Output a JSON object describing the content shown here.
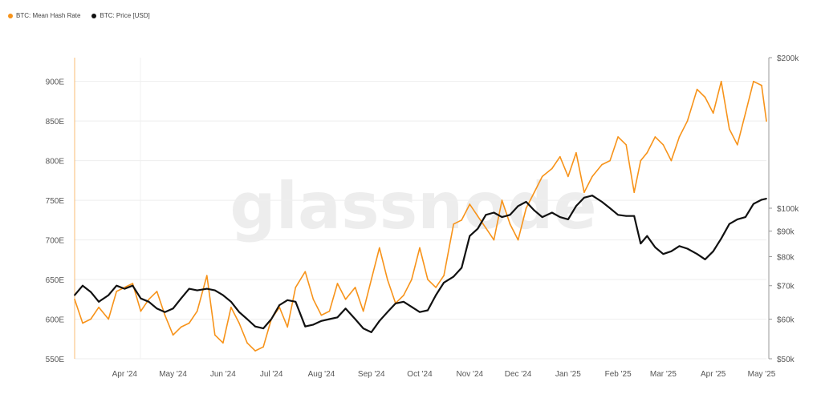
{
  "legend": [
    {
      "label": "BTC: Mean Hash Rate",
      "color": "#f7931a"
    },
    {
      "label": "BTC: Price [USD]",
      "color": "#111111"
    }
  ],
  "watermark": "glassnode",
  "chart_data": {
    "type": "line",
    "x_labels": [
      "Apr '24",
      "May '24",
      "Jun '24",
      "Jul '24",
      "Aug '24",
      "Sep '24",
      "Oct '24",
      "Nov '24",
      "Dec '24",
      "Jan '25",
      "Feb '25",
      "Mar '25",
      "Apr '25",
      "May '25"
    ],
    "left_axis": {
      "ticks": [
        "550E",
        "600E",
        "650E",
        "700E",
        "750E",
        "800E",
        "850E",
        "900E"
      ],
      "values": [
        550,
        600,
        650,
        700,
        750,
        800,
        850,
        900
      ],
      "range": [
        550,
        930
      ]
    },
    "right_axis": {
      "scale": "log",
      "ticks": [
        "$50k",
        "$60k",
        "$70k",
        "$80k",
        "$90k",
        "$100k",
        "$200k"
      ],
      "values": [
        50000,
        60000,
        70000,
        80000,
        90000,
        100000,
        200000
      ],
      "range": [
        50000,
        200000
      ]
    },
    "series": [
      {
        "name": "BTC: Mean Hash Rate",
        "axis": "left",
        "color": "#f7931a",
        "x": [
          "2024-03-15",
          "2024-03-20",
          "2024-03-25",
          "2024-03-30",
          "2024-04-05",
          "2024-04-10",
          "2024-04-15",
          "2024-04-20",
          "2024-04-25",
          "2024-04-30",
          "2024-05-05",
          "2024-05-10",
          "2024-05-15",
          "2024-05-20",
          "2024-05-25",
          "2024-05-30",
          "2024-06-05",
          "2024-06-10",
          "2024-06-15",
          "2024-06-20",
          "2024-06-25",
          "2024-06-30",
          "2024-07-05",
          "2024-07-10",
          "2024-07-15",
          "2024-07-20",
          "2024-07-25",
          "2024-07-30",
          "2024-08-05",
          "2024-08-10",
          "2024-08-15",
          "2024-08-20",
          "2024-08-25",
          "2024-08-30",
          "2024-09-05",
          "2024-09-10",
          "2024-09-15",
          "2024-09-20",
          "2024-09-25",
          "2024-09-30",
          "2024-10-05",
          "2024-10-10",
          "2024-10-15",
          "2024-10-20",
          "2024-10-25",
          "2024-10-30",
          "2024-11-05",
          "2024-11-10",
          "2024-11-15",
          "2024-11-20",
          "2024-11-25",
          "2024-11-30",
          "2024-12-05",
          "2024-12-10",
          "2024-12-15",
          "2024-12-20",
          "2024-12-25",
          "2024-12-30",
          "2025-01-05",
          "2025-01-10",
          "2025-01-15",
          "2025-01-20",
          "2025-01-25",
          "2025-01-30",
          "2025-02-05",
          "2025-02-10",
          "2025-02-15",
          "2025-02-20",
          "2025-02-25",
          "2025-03-01",
          "2025-03-05",
          "2025-03-10",
          "2025-03-15",
          "2025-03-20",
          "2025-03-25",
          "2025-03-30",
          "2025-04-05",
          "2025-04-10",
          "2025-04-15",
          "2025-04-20",
          "2025-04-25",
          "2025-04-30",
          "2025-05-05",
          "2025-05-10",
          "2025-05-15",
          "2025-05-18"
        ],
        "values": [
          625,
          595,
          600,
          615,
          600,
          635,
          640,
          645,
          610,
          625,
          635,
          605,
          580,
          590,
          595,
          610,
          655,
          580,
          570,
          615,
          595,
          570,
          560,
          565,
          600,
          615,
          590,
          640,
          660,
          625,
          605,
          610,
          645,
          625,
          640,
          610,
          650,
          690,
          650,
          620,
          630,
          650,
          690,
          650,
          640,
          655,
          720,
          725,
          745,
          730,
          715,
          700,
          750,
          720,
          700,
          740,
          760,
          780,
          790,
          805,
          780,
          810,
          760,
          780,
          795,
          800,
          830,
          820,
          760,
          800,
          810,
          830,
          820,
          800,
          830,
          850,
          890,
          880,
          860,
          900,
          840,
          820,
          860,
          900,
          895,
          850
        ],
        "label_series": "BTC: Mean Hash Rate"
      },
      {
        "name": "BTC: Price [USD]",
        "axis": "right",
        "color": "#111111",
        "x": [
          "2024-03-15",
          "2024-03-20",
          "2024-03-25",
          "2024-03-30",
          "2024-04-05",
          "2024-04-10",
          "2024-04-15",
          "2024-04-20",
          "2024-04-25",
          "2024-04-30",
          "2024-05-05",
          "2024-05-10",
          "2024-05-15",
          "2024-05-20",
          "2024-05-25",
          "2024-05-30",
          "2024-06-05",
          "2024-06-10",
          "2024-06-15",
          "2024-06-20",
          "2024-06-25",
          "2024-06-30",
          "2024-07-05",
          "2024-07-10",
          "2024-07-15",
          "2024-07-20",
          "2024-07-25",
          "2024-07-30",
          "2024-08-05",
          "2024-08-10",
          "2024-08-15",
          "2024-08-20",
          "2024-08-25",
          "2024-08-30",
          "2024-09-05",
          "2024-09-10",
          "2024-09-15",
          "2024-09-20",
          "2024-09-25",
          "2024-09-30",
          "2024-10-05",
          "2024-10-10",
          "2024-10-15",
          "2024-10-20",
          "2024-10-25",
          "2024-10-30",
          "2024-11-05",
          "2024-11-10",
          "2024-11-15",
          "2024-11-20",
          "2024-11-25",
          "2024-11-30",
          "2024-12-05",
          "2024-12-10",
          "2024-12-15",
          "2024-12-20",
          "2024-12-25",
          "2024-12-30",
          "2025-01-05",
          "2025-01-10",
          "2025-01-15",
          "2025-01-20",
          "2025-01-25",
          "2025-01-30",
          "2025-02-05",
          "2025-02-10",
          "2025-02-15",
          "2025-02-20",
          "2025-02-25",
          "2025-03-01",
          "2025-03-05",
          "2025-03-10",
          "2025-03-15",
          "2025-03-20",
          "2025-03-25",
          "2025-03-30",
          "2025-04-05",
          "2025-04-10",
          "2025-04-15",
          "2025-04-20",
          "2025-04-25",
          "2025-04-30",
          "2025-05-05",
          "2025-05-10",
          "2025-05-15",
          "2025-05-18"
        ],
        "values": [
          67000,
          70000,
          68000,
          65000,
          67000,
          70000,
          69000,
          70000,
          66000,
          65000,
          63000,
          62000,
          63000,
          66000,
          69000,
          68500,
          69000,
          68500,
          67000,
          65000,
          62000,
          60000,
          58000,
          57500,
          60000,
          64000,
          65500,
          65000,
          58000,
          58500,
          59500,
          60000,
          60500,
          63000,
          60000,
          57500,
          56500,
          59500,
          62000,
          64500,
          65000,
          63500,
          62000,
          62500,
          67000,
          71000,
          73000,
          76000,
          88000,
          91000,
          97000,
          98000,
          96000,
          97000,
          101000,
          103000,
          99000,
          96000,
          98000,
          96000,
          95000,
          101000,
          105000,
          106000,
          103000,
          100000,
          97000,
          96500,
          96500,
          85000,
          88000,
          83500,
          81000,
          82000,
          84000,
          83000,
          81000,
          79000,
          82000,
          87000,
          93000,
          95000,
          96000,
          102000,
          104000,
          104500
        ]
      }
    ]
  }
}
